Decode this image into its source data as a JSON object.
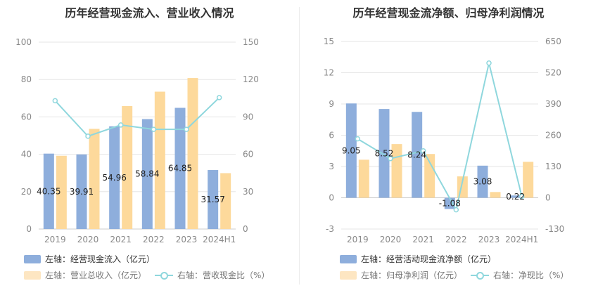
{
  "charts": [
    {
      "title": "历年经营现金流入、营业收入情况",
      "legend": [
        {
          "label": "左轴：经营现金流入（亿元）"
        },
        {
          "label": "左轴：营业总收入（亿元）"
        },
        {
          "label": "右轴：营收现金比（%）"
        }
      ]
    },
    {
      "title": "历年经营现金流净额、归母净利润情况",
      "legend": [
        {
          "label": "左轴：经营活动现金流净额（亿元）"
        },
        {
          "label": "左轴：归母净利润（亿元）"
        },
        {
          "label": "右轴：净现比（%）"
        }
      ]
    }
  ],
  "colors": {
    "bar1": "#8eaedc",
    "bar2": "#fdd99b",
    "line": "#8fd7dd"
  },
  "chart_data": [
    {
      "type": "bar",
      "title": "历年经营现金流入、营业收入情况",
      "categories": [
        "2019",
        "2020",
        "2021",
        "2022",
        "2023",
        "2024H1"
      ],
      "y_left": {
        "ticks": [
          0,
          20,
          40,
          60,
          80,
          100
        ],
        "lim": [
          0,
          100
        ]
      },
      "y_right": {
        "ticks": [
          0,
          30,
          60,
          90,
          120,
          150
        ],
        "lim": [
          0,
          150
        ]
      },
      "series": [
        {
          "name": "左轴：经营现金流入（亿元）",
          "axis": "left",
          "type": "bar",
          "values": [
            40.35,
            39.91,
            54.96,
            58.84,
            64.85,
            31.57
          ],
          "labels": [
            "40.35",
            "39.91",
            "54.96",
            "58.84",
            "64.85",
            "31.57"
          ]
        },
        {
          "name": "左轴：营业总收入（亿元）",
          "axis": "left",
          "type": "bar",
          "values": [
            39.2,
            53.6,
            65.8,
            73.5,
            80.8,
            29.9
          ]
        },
        {
          "name": "右轴：营收现金比（%）",
          "axis": "right",
          "type": "line",
          "values": [
            103,
            74.5,
            83.5,
            80,
            80,
            105.5
          ]
        }
      ],
      "grid": true
    },
    {
      "type": "bar",
      "title": "历年经营现金流净额、归母净利润情况",
      "categories": [
        "2019",
        "2020",
        "2021",
        "2022",
        "2023",
        "2024H1"
      ],
      "y_left": {
        "ticks": [
          -3,
          0,
          3,
          6,
          9,
          12,
          15
        ],
        "lim": [
          -3,
          15
        ]
      },
      "y_right": {
        "ticks": [
          -130,
          0,
          130,
          260,
          390,
          520,
          650
        ],
        "lim": [
          -130,
          650
        ]
      },
      "series": [
        {
          "name": "左轴：经营活动现金流净额（亿元）",
          "axis": "left",
          "type": "bar",
          "values": [
            9.05,
            8.52,
            8.24,
            -1.08,
            3.08,
            0.22
          ],
          "labels": [
            "9.05",
            "8.52",
            "8.24",
            "-1.08",
            "3.08",
            "0.22"
          ]
        },
        {
          "name": "左轴：归母净利润（亿元）",
          "axis": "left",
          "type": "bar",
          "values": [
            3.65,
            5.15,
            4.2,
            2.05,
            0.55,
            3.45
          ]
        },
        {
          "name": "右轴：净现比（%）",
          "axis": "right",
          "type": "line",
          "values": [
            245,
            163,
            195,
            -50,
            560,
            6
          ]
        }
      ],
      "grid": true
    }
  ]
}
